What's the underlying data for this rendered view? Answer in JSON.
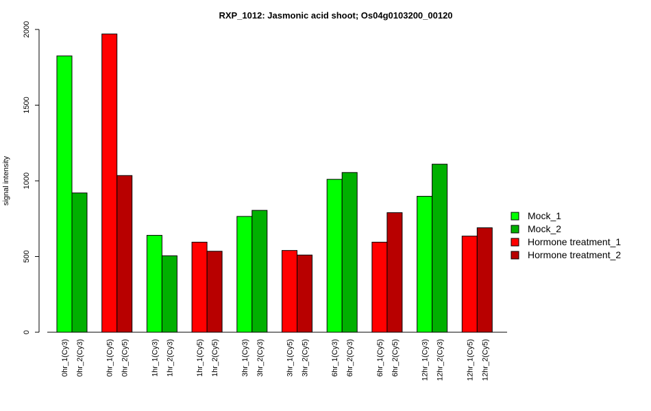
{
  "chart_data": {
    "type": "bar",
    "title": "RXP_1012: Jasmonic acid shoot; Os04g0103200_00120",
    "xlabel": "",
    "ylabel": "signal intensity",
    "ylim": [
      0,
      2000
    ],
    "yticks": [
      0,
      500,
      1000,
      1500,
      2000
    ],
    "grid": false,
    "legend_position": "right",
    "legend": [
      {
        "label": "Mock_1",
        "color": "#00ff00"
      },
      {
        "label": "Mock_2",
        "color": "#00b000"
      },
      {
        "label": "Hormone treatment_1",
        "color": "#ff0000"
      },
      {
        "label": "Hormone treatment_2",
        "color": "#b80000"
      }
    ],
    "groups": [
      {
        "bars": [
          {
            "label": "0hr_1(Cy3)",
            "value": 1825,
            "color": "#00ff00"
          },
          {
            "label": "0hr_2(Cy3)",
            "value": 920,
            "color": "#00b000"
          }
        ]
      },
      {
        "bars": [
          {
            "label": "0hr_1(Cy5)",
            "value": 1970,
            "color": "#ff0000"
          },
          {
            "label": "0hr_2(Cy5)",
            "value": 1035,
            "color": "#b80000"
          }
        ]
      },
      {
        "bars": [
          {
            "label": "1hr_1(Cy3)",
            "value": 640,
            "color": "#00ff00"
          },
          {
            "label": "1hr_2(Cy3)",
            "value": 505,
            "color": "#00b000"
          }
        ]
      },
      {
        "bars": [
          {
            "label": "1hr_1(Cy5)",
            "value": 595,
            "color": "#ff0000"
          },
          {
            "label": "1hr_2(Cy5)",
            "value": 535,
            "color": "#b80000"
          }
        ]
      },
      {
        "bars": [
          {
            "label": "3hr_1(Cy3)",
            "value": 765,
            "color": "#00ff00"
          },
          {
            "label": "3hr_2(Cy3)",
            "value": 805,
            "color": "#00b000"
          }
        ]
      },
      {
        "bars": [
          {
            "label": "3hr_1(Cy5)",
            "value": 540,
            "color": "#ff0000"
          },
          {
            "label": "3hr_2(Cy5)",
            "value": 510,
            "color": "#b80000"
          }
        ]
      },
      {
        "bars": [
          {
            "label": "6hr_1(Cy3)",
            "value": 1010,
            "color": "#00ff00"
          },
          {
            "label": "6hr_2(Cy3)",
            "value": 1055,
            "color": "#00b000"
          }
        ]
      },
      {
        "bars": [
          {
            "label": "6hr_1(Cy5)",
            "value": 595,
            "color": "#ff0000"
          },
          {
            "label": "6hr_2(Cy5)",
            "value": 790,
            "color": "#b80000"
          }
        ]
      },
      {
        "bars": [
          {
            "label": "12hr_1(Cy3)",
            "value": 898,
            "color": "#00ff00"
          },
          {
            "label": "12hr_2(Cy3)",
            "value": 1110,
            "color": "#00b000"
          }
        ]
      },
      {
        "bars": [
          {
            "label": "12hr_1(Cy5)",
            "value": 635,
            "color": "#ff0000"
          },
          {
            "label": "12hr_2(Cy5)",
            "value": 690,
            "color": "#b80000"
          }
        ]
      }
    ]
  }
}
